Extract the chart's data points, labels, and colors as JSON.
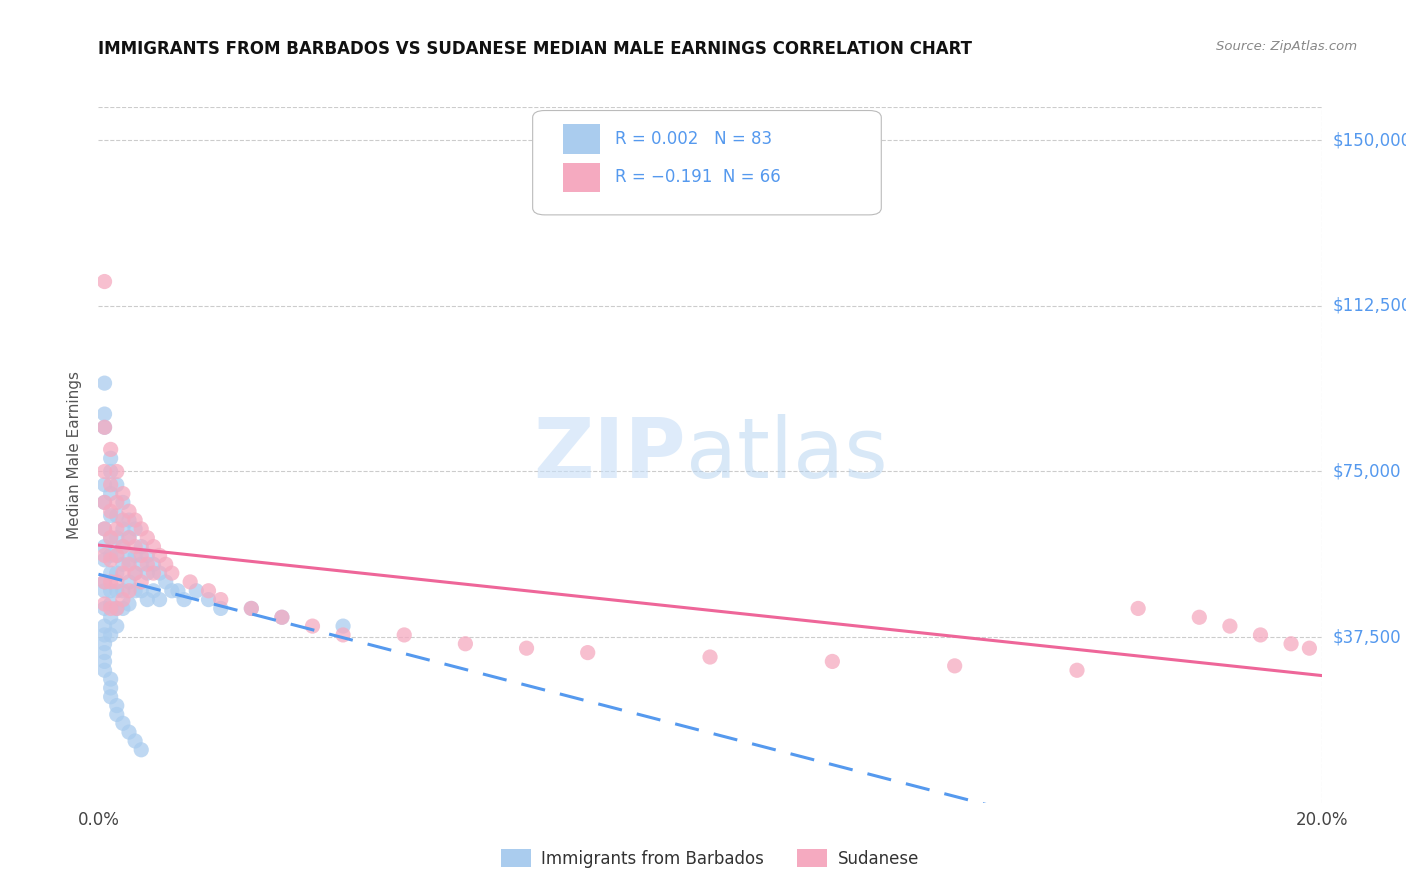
{
  "title": "IMMIGRANTS FROM BARBADOS VS SUDANESE MEDIAN MALE EARNINGS CORRELATION CHART",
  "source": "Source: ZipAtlas.com",
  "ylabel": "Median Male Earnings",
  "xlim": [
    0.0,
    0.2
  ],
  "ylim": [
    0,
    157500
  ],
  "ytick_vals": [
    37500,
    75000,
    112500,
    150000
  ],
  "ytick_labels": [
    "$37,500",
    "$75,000",
    "$112,500",
    "$150,000"
  ],
  "xtick_vals": [
    0.0,
    0.05,
    0.1,
    0.15,
    0.2
  ],
  "xtick_labels": [
    "0.0%",
    "",
    "",
    "",
    "20.0%"
  ],
  "background_color": "#ffffff",
  "grid_color": "#cccccc",
  "color_blue": "#aaccee",
  "color_pink": "#f5aac0",
  "line_blue": "#5599ee",
  "line_pink": "#ee6699",
  "axis_label_color": "#5599ee",
  "title_color": "#111111",
  "legend_label1": "Immigrants from Barbados",
  "legend_label2": "Sudanese",
  "barbados_x": [
    0.001,
    0.001,
    0.001,
    0.001,
    0.001,
    0.001,
    0.001,
    0.001,
    0.001,
    0.001,
    0.002,
    0.002,
    0.002,
    0.002,
    0.002,
    0.002,
    0.002,
    0.002,
    0.002,
    0.002,
    0.003,
    0.003,
    0.003,
    0.003,
    0.003,
    0.003,
    0.003,
    0.003,
    0.004,
    0.004,
    0.004,
    0.004,
    0.004,
    0.004,
    0.005,
    0.005,
    0.005,
    0.005,
    0.005,
    0.006,
    0.006,
    0.006,
    0.006,
    0.007,
    0.007,
    0.007,
    0.008,
    0.008,
    0.008,
    0.009,
    0.009,
    0.01,
    0.01,
    0.011,
    0.012,
    0.013,
    0.014,
    0.016,
    0.018,
    0.02,
    0.025,
    0.03,
    0.04,
    0.001,
    0.001,
    0.001,
    0.001,
    0.001,
    0.002,
    0.002,
    0.002,
    0.003,
    0.003,
    0.004,
    0.005,
    0.006,
    0.007,
    0.001,
    0.001,
    0.002
  ],
  "barbados_y": [
    88000,
    72000,
    68000,
    62000,
    58000,
    55000,
    50000,
    48000,
    44000,
    40000,
    78000,
    70000,
    65000,
    60000,
    56000,
    52000,
    48000,
    45000,
    42000,
    38000,
    72000,
    65000,
    60000,
    56000,
    52000,
    48000,
    44000,
    40000,
    68000,
    62000,
    58000,
    54000,
    48000,
    44000,
    64000,
    60000,
    55000,
    50000,
    45000,
    62000,
    56000,
    52000,
    48000,
    58000,
    54000,
    48000,
    56000,
    52000,
    46000,
    54000,
    48000,
    52000,
    46000,
    50000,
    48000,
    48000,
    46000,
    48000,
    46000,
    44000,
    44000,
    42000,
    40000,
    38000,
    36000,
    34000,
    32000,
    30000,
    28000,
    26000,
    24000,
    22000,
    20000,
    18000,
    16000,
    14000,
    12000,
    95000,
    85000,
    75000
  ],
  "sudanese_x": [
    0.001,
    0.001,
    0.001,
    0.001,
    0.001,
    0.001,
    0.001,
    0.001,
    0.002,
    0.002,
    0.002,
    0.002,
    0.002,
    0.002,
    0.002,
    0.003,
    0.003,
    0.003,
    0.003,
    0.003,
    0.003,
    0.004,
    0.004,
    0.004,
    0.004,
    0.004,
    0.005,
    0.005,
    0.005,
    0.005,
    0.006,
    0.006,
    0.006,
    0.007,
    0.007,
    0.007,
    0.008,
    0.008,
    0.009,
    0.009,
    0.01,
    0.011,
    0.012,
    0.015,
    0.018,
    0.02,
    0.025,
    0.03,
    0.035,
    0.04,
    0.05,
    0.06,
    0.07,
    0.08,
    0.1,
    0.12,
    0.14,
    0.16,
    0.17,
    0.18,
    0.185,
    0.19,
    0.195,
    0.198
  ],
  "sudanese_y": [
    118000,
    85000,
    75000,
    68000,
    62000,
    56000,
    50000,
    45000,
    80000,
    72000,
    66000,
    60000,
    55000,
    50000,
    44000,
    75000,
    68000,
    62000,
    56000,
    50000,
    44000,
    70000,
    64000,
    58000,
    52000,
    46000,
    66000,
    60000,
    54000,
    48000,
    64000,
    58000,
    52000,
    62000,
    56000,
    50000,
    60000,
    54000,
    58000,
    52000,
    56000,
    54000,
    52000,
    50000,
    48000,
    46000,
    44000,
    42000,
    40000,
    38000,
    38000,
    36000,
    35000,
    34000,
    33000,
    32000,
    31000,
    30000,
    44000,
    42000,
    40000,
    38000,
    36000,
    35000
  ]
}
